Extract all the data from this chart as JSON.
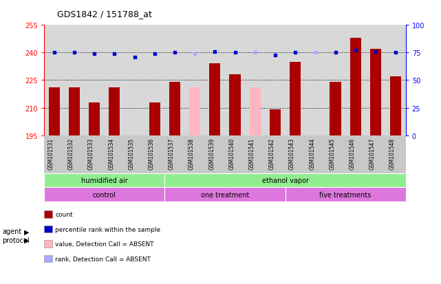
{
  "title": "GDS1842 / 151788_at",
  "samples": [
    "GSM101531",
    "GSM101532",
    "GSM101533",
    "GSM101534",
    "GSM101535",
    "GSM101536",
    "GSM101537",
    "GSM101538",
    "GSM101539",
    "GSM101540",
    "GSM101541",
    "GSM101542",
    "GSM101543",
    "GSM101544",
    "GSM101545",
    "GSM101546",
    "GSM101547",
    "GSM101548"
  ],
  "count_values": [
    221,
    221,
    213,
    221,
    195,
    213,
    224,
    221,
    234,
    228,
    221,
    209,
    235,
    195,
    224,
    248,
    242,
    227
  ],
  "count_absent": [
    false,
    false,
    false,
    false,
    false,
    false,
    false,
    true,
    false,
    false,
    true,
    false,
    false,
    true,
    false,
    false,
    false,
    false
  ],
  "percentile_values": [
    75,
    75,
    74,
    74,
    71,
    74,
    75,
    74,
    76,
    75,
    75,
    73,
    75,
    75,
    75,
    77,
    76,
    75
  ],
  "percentile_absent": [
    false,
    false,
    false,
    false,
    false,
    false,
    false,
    true,
    false,
    false,
    true,
    false,
    false,
    true,
    false,
    false,
    false,
    false
  ],
  "ymin": 195,
  "ymax": 255,
  "yticks": [
    195,
    210,
    225,
    240,
    255
  ],
  "y2min": 0,
  "y2max": 100,
  "y2ticks": [
    0,
    25,
    50,
    75,
    100
  ],
  "bar_color_present": "#aa0000",
  "bar_color_absent": "#ffb6c1",
  "dot_color_present": "#0000cc",
  "dot_color_absent": "#aaaaff",
  "agent_groups": [
    {
      "label": "humidified air",
      "start": 0,
      "end": 6
    },
    {
      "label": "ethanol vapor",
      "start": 6,
      "end": 18
    }
  ],
  "agent_color": "#90ee90",
  "protocol_groups": [
    {
      "label": "control",
      "start": 0,
      "end": 6
    },
    {
      "label": "one treatment",
      "start": 6,
      "end": 12
    },
    {
      "label": "five treatments",
      "start": 12,
      "end": 18
    }
  ],
  "protocol_color": "#dd77dd",
  "legend_items": [
    {
      "label": "count",
      "color": "#aa0000"
    },
    {
      "label": "percentile rank within the sample",
      "color": "#0000cc"
    },
    {
      "label": "value, Detection Call = ABSENT",
      "color": "#ffb6c1"
    },
    {
      "label": "rank, Detection Call = ABSENT",
      "color": "#aaaaff"
    }
  ],
  "bg_color": "#d8d8d8",
  "label_bg_color": "#c8c8c8"
}
